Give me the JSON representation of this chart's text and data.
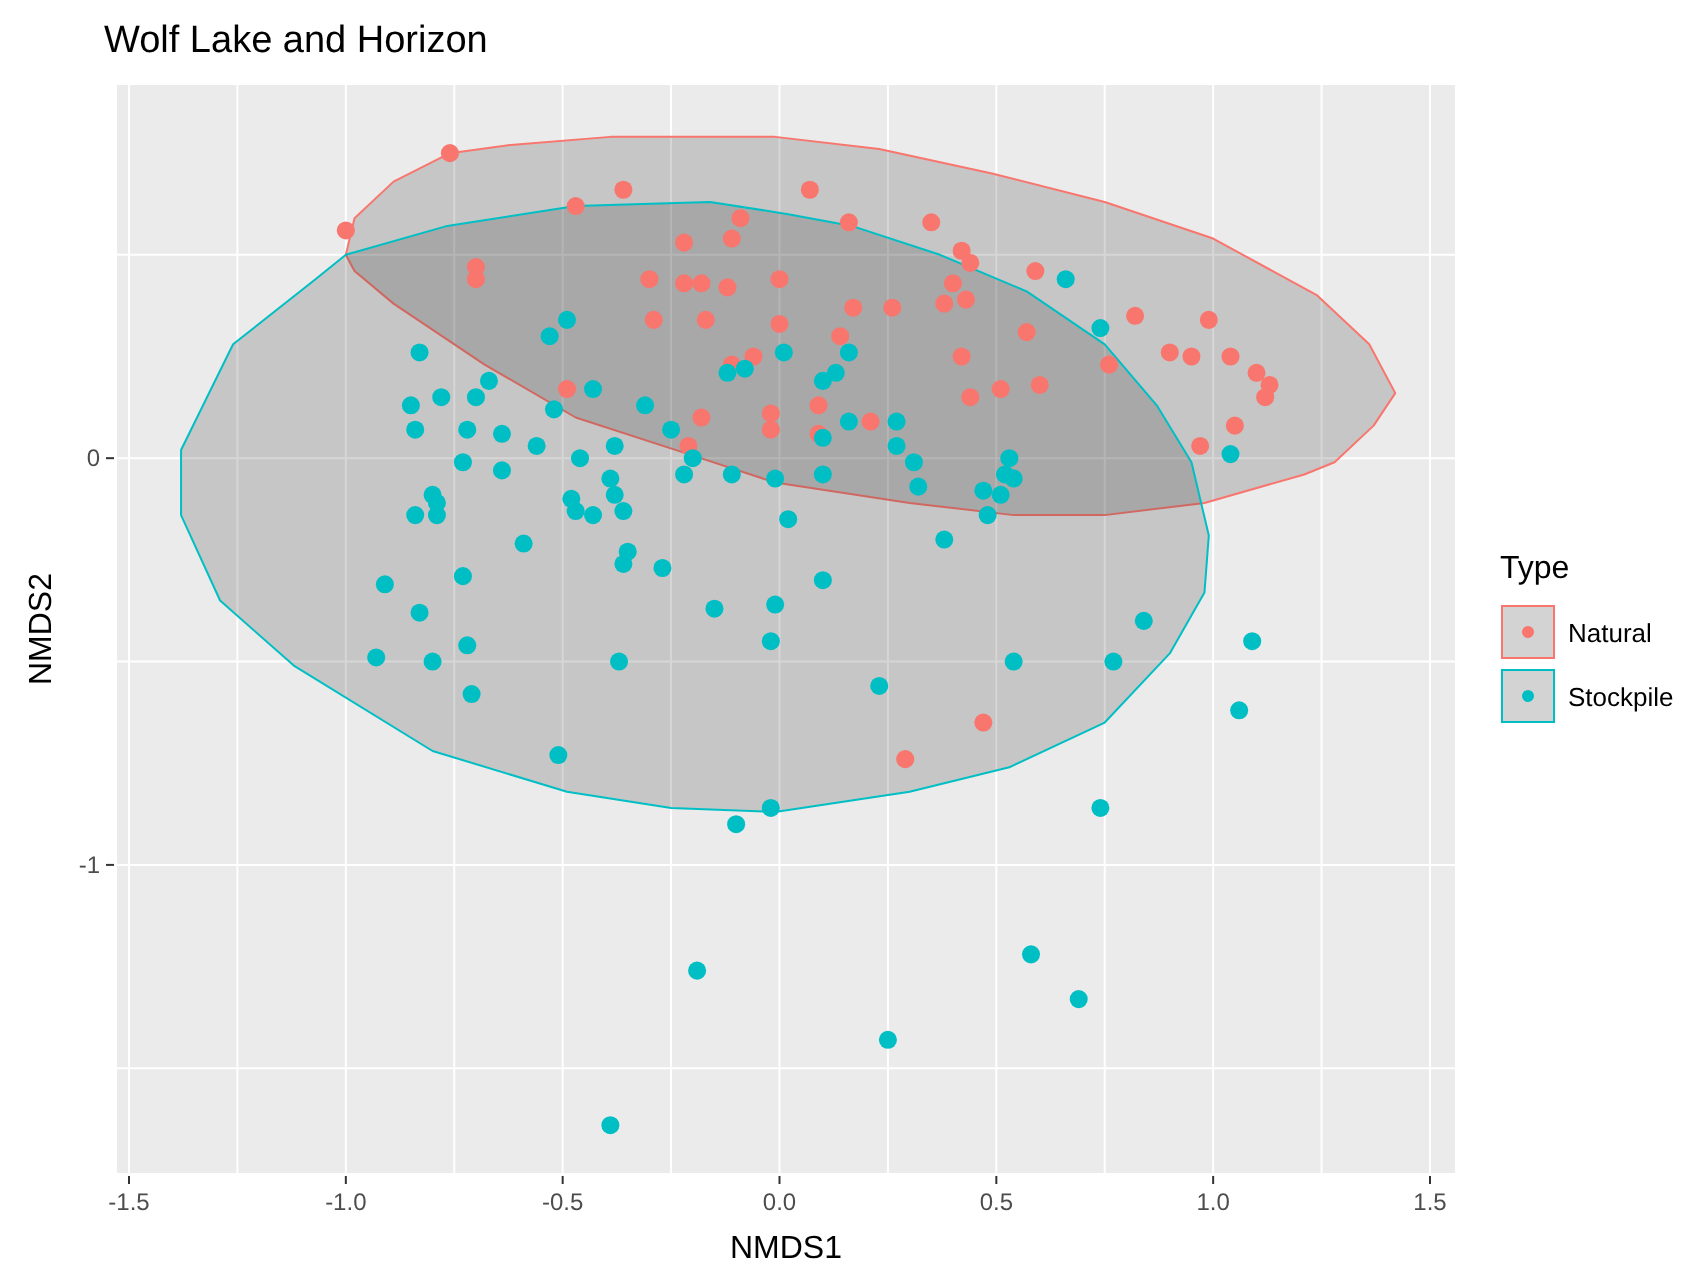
{
  "chart_data": {
    "type": "scatter",
    "title": "Wolf Lake and Horizon",
    "xlabel": "NMDS1",
    "ylabel": "NMDS2",
    "legend_title": "Type",
    "legend": "right",
    "grid": true,
    "marker": "circle",
    "xlim": [
      -1.53,
      1.56
    ],
    "ylim": [
      -1.76,
      0.92
    ],
    "xticks": [
      {
        "value": -1.5,
        "label": "-1.5"
      },
      {
        "value": -1.25,
        "label": null
      },
      {
        "value": -1,
        "label": "-1.0"
      },
      {
        "value": -0.75,
        "label": null
      },
      {
        "value": -0.5,
        "label": "-0.5"
      },
      {
        "value": -0.25,
        "label": null
      },
      {
        "value": 0,
        "label": "0.0"
      },
      {
        "value": 0.25,
        "label": null
      },
      {
        "value": 0.5,
        "label": "0.5"
      },
      {
        "value": 0.75,
        "label": null
      },
      {
        "value": 1,
        "label": "1.0"
      },
      {
        "value": 1.25,
        "label": null
      },
      {
        "value": 1.5,
        "label": "1.5"
      }
    ],
    "yticks": [
      {
        "value": -1.5,
        "label": null
      },
      -1,
      {
        "value": -0.5,
        "label": null
      },
      0,
      {
        "value": 0.5,
        "label": null
      }
    ],
    "series": [
      {
        "name": "Natural",
        "color": "#f8766d",
        "x": [
          -0.76,
          -1.0,
          -0.36,
          -0.47,
          -0.09,
          -0.22,
          -0.11,
          -0.7,
          -0.7,
          -0.3,
          -0.22,
          -0.18,
          -0.12,
          0.0,
          -0.29,
          -0.17,
          0.0,
          -0.11,
          -0.06,
          -0.49,
          -0.18,
          -0.02,
          -0.02,
          -0.21,
          0.07,
          0.16,
          0.35,
          0.42,
          0.44,
          0.59,
          0.4,
          0.43,
          0.38,
          0.17,
          0.26,
          0.14,
          0.57,
          0.82,
          0.99,
          0.42,
          0.76,
          0.9,
          0.95,
          1.04,
          1.1,
          1.13,
          1.12,
          0.6,
          0.51,
          0.44,
          0.09,
          0.21,
          0.09,
          1.05,
          0.97,
          0.47,
          0.29
        ],
        "values": [
          0.75,
          0.56,
          0.66,
          0.62,
          0.59,
          0.53,
          0.54,
          0.47,
          0.44,
          0.44,
          0.43,
          0.43,
          0.42,
          0.44,
          0.34,
          0.34,
          0.33,
          0.23,
          0.25,
          0.17,
          0.1,
          0.11,
          0.07,
          0.03,
          0.66,
          0.58,
          0.58,
          0.51,
          0.48,
          0.46,
          0.43,
          0.39,
          0.38,
          0.37,
          0.37,
          0.3,
          0.31,
          0.35,
          0.34,
          0.25,
          0.23,
          0.26,
          0.25,
          0.25,
          0.21,
          0.18,
          0.15,
          0.18,
          0.17,
          0.15,
          0.13,
          0.09,
          0.06,
          0.08,
          0.03,
          -0.65,
          -0.74
        ]
      },
      {
        "name": "Stockpile",
        "color": "#00bfc4",
        "x": [
          -0.49,
          -0.53,
          -0.83,
          -0.67,
          -0.43,
          -0.12,
          -0.08,
          0.01,
          -0.85,
          -0.78,
          -0.7,
          -0.52,
          -0.31,
          -0.25,
          -0.84,
          -0.72,
          -0.64,
          -0.56,
          -0.46,
          -0.38,
          -0.2,
          -0.73,
          -0.64,
          -0.39,
          -0.38,
          -0.48,
          -0.47,
          -0.43,
          -0.36,
          -0.22,
          -0.11,
          -0.01,
          -0.8,
          -0.79,
          -0.79,
          -0.84,
          -0.59,
          -0.35,
          -0.36,
          -0.27,
          0.02,
          -0.91,
          -0.73,
          -0.83,
          -0.15,
          -0.01,
          -0.02,
          -0.72,
          -0.93,
          -0.8,
          -0.37,
          -0.71,
          -0.51,
          -0.02,
          -0.1,
          0.66,
          0.74,
          0.16,
          0.13,
          0.1,
          0.16,
          0.27,
          0.1,
          0.27,
          0.31,
          0.53,
          1.04,
          0.1,
          0.32,
          0.52,
          0.54,
          0.47,
          0.51,
          0.48,
          0.38,
          0.1,
          0.84,
          1.09,
          0.54,
          0.77,
          0.23,
          1.06,
          0.74,
          -0.19,
          0.58,
          0.69,
          0.25,
          -0.39
        ],
        "values": [
          0.34,
          0.3,
          0.26,
          0.19,
          0.17,
          0.21,
          0.22,
          0.26,
          0.13,
          0.15,
          0.15,
          0.12,
          0.13,
          0.07,
          0.07,
          0.07,
          0.06,
          0.03,
          0.0,
          0.03,
          0.0,
          -0.01,
          -0.03,
          -0.05,
          -0.09,
          -0.1,
          -0.13,
          -0.14,
          -0.13,
          -0.04,
          -0.04,
          -0.05,
          -0.09,
          -0.11,
          -0.14,
          -0.14,
          -0.21,
          -0.23,
          -0.26,
          -0.27,
          -0.15,
          -0.31,
          -0.29,
          -0.38,
          -0.37,
          -0.36,
          -0.45,
          -0.46,
          -0.49,
          -0.5,
          -0.5,
          -0.58,
          -0.73,
          -0.86,
          -0.9,
          0.44,
          0.32,
          0.26,
          0.21,
          0.19,
          0.09,
          0.09,
          0.05,
          0.03,
          -0.01,
          0.0,
          0.01,
          -0.04,
          -0.07,
          -0.04,
          -0.05,
          -0.08,
          -0.09,
          -0.14,
          -0.2,
          -0.3,
          -0.4,
          -0.45,
          -0.5,
          -0.5,
          -0.56,
          -0.62,
          -0.86,
          -1.26,
          -1.22,
          -1.33,
          -1.43,
          -1.64
        ]
      },
      {
        "type": "area",
        "marker": "none",
        "color": "#f8766d",
        "x": [
          -1.0,
          -0.98,
          -0.89,
          -0.76,
          -0.62,
          -0.39,
          -0.01,
          0.23,
          0.49,
          0.75,
          1.0,
          1.24,
          1.36,
          1.42,
          1.37,
          1.28,
          1.21,
          0.98,
          0.75,
          0.54,
          0.3,
          -0.01,
          -0.21,
          -0.47,
          -0.68,
          -0.89,
          -0.98
        ],
        "values": [
          0.5,
          0.59,
          0.68,
          0.75,
          0.77,
          0.79,
          0.79,
          0.76,
          0.7,
          0.63,
          0.54,
          0.4,
          0.28,
          0.16,
          0.08,
          -0.01,
          -0.04,
          -0.11,
          -0.14,
          -0.14,
          -0.11,
          -0.06,
          0.01,
          0.1,
          0.23,
          0.38,
          0.46
        ]
      },
      {
        "type": "area",
        "marker": "none",
        "color": "#00bfc4",
        "x": [
          -1.38,
          -1.26,
          -1.07,
          -1.0,
          -0.77,
          -0.47,
          -0.16,
          0.02,
          0.17,
          0.37,
          0.57,
          0.75,
          0.87,
          0.95,
          0.99,
          0.98,
          0.9,
          0.75,
          0.53,
          0.3,
          -0.01,
          -0.25,
          -0.49,
          -0.8,
          -1.12,
          -1.29,
          -1.38
        ],
        "values": [
          0.02,
          0.28,
          0.44,
          0.5,
          0.57,
          0.62,
          0.63,
          0.6,
          0.57,
          0.5,
          0.41,
          0.28,
          0.13,
          -0.01,
          -0.19,
          -0.33,
          -0.48,
          -0.65,
          -0.76,
          -0.82,
          -0.87,
          -0.86,
          -0.82,
          -0.72,
          -0.51,
          -0.35,
          -0.14
        ]
      }
    ]
  }
}
